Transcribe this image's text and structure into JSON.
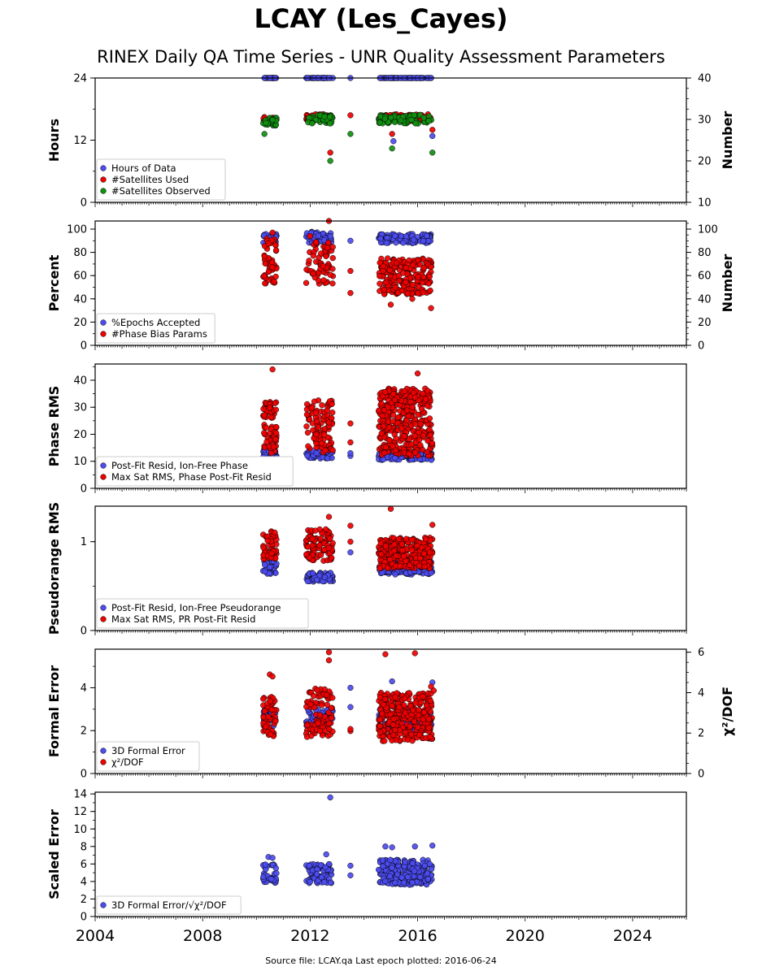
{
  "title": "LCAY (Les_Cayes)",
  "subtitle": "RINEX Daily QA Time Series - UNR Quality Assessment Parameters",
  "footer": "Source file: LCAY.qa Last epoch plotted: 2016-06-24",
  "colors": {
    "blue": "#4c4cf0",
    "red": "#f00000",
    "green": "#109010",
    "edge": "#000000"
  },
  "chart_data": [
    {
      "type": "scatter",
      "ylabel": "Hours",
      "ylabel_right": "Number",
      "xlim": [
        2004,
        2026
      ],
      "ylim": [
        0,
        24
      ],
      "ylim_right": [
        10,
        40
      ],
      "yticks": [
        0,
        12,
        24
      ],
      "yticks_right": [
        10,
        20,
        30,
        40
      ],
      "legend_location": "lower-left",
      "series": [
        {
          "name": "Hours of Data",
          "color": "#4c4cf0",
          "axis": "left",
          "points": [
            [
              2010.3,
              24
            ],
            [
              2010.5,
              24
            ],
            [
              2010.7,
              24
            ],
            [
              2011.9,
              24
            ],
            [
              2012.3,
              24
            ],
            [
              2012.7,
              24
            ],
            [
              2013.5,
              24
            ],
            [
              2014.6,
              24
            ],
            [
              2015.0,
              24
            ],
            [
              2015.5,
              24
            ],
            [
              2016.0,
              24
            ],
            [
              2016.5,
              24
            ],
            [
              2015.1,
              11.8
            ],
            [
              2016.55,
              12.8
            ]
          ],
          "clusters": [
            [
              2010.25,
              2010.75,
              24,
              24,
              25
            ],
            [
              2011.85,
              2012.85,
              24,
              24,
              45
            ],
            [
              2014.55,
              2016.55,
              24,
              24,
              80
            ]
          ]
        },
        {
          "name": "#Satellites Used",
          "color": "#f00000",
          "axis": "right",
          "points": [
            [
              2012.75,
              22
            ],
            [
              2013.5,
              31
            ],
            [
              2015.05,
              26.5
            ],
            [
              2016.55,
              27.5
            ]
          ],
          "clusters": [
            [
              2010.25,
              2010.75,
              29.5,
              30.6,
              20
            ],
            [
              2011.85,
              2012.85,
              29.8,
              31.3,
              35
            ],
            [
              2014.55,
              2016.55,
              29.6,
              31.3,
              70
            ]
          ]
        },
        {
          "name": "#Satellites Observed",
          "color": "#109010",
          "axis": "right",
          "points": [
            [
              2010.3,
              26.5
            ],
            [
              2012.75,
              20
            ],
            [
              2013.5,
              26.5
            ],
            [
              2015.05,
              23
            ],
            [
              2016.55,
              22
            ]
          ],
          "clusters": [
            [
              2010.25,
              2010.75,
              28.5,
              30.4,
              30
            ],
            [
              2011.85,
              2012.85,
              29,
              31.2,
              45
            ],
            [
              2014.55,
              2016.55,
              29,
              31.2,
              90
            ]
          ]
        }
      ]
    },
    {
      "type": "scatter",
      "ylabel": "Percent",
      "ylabel_right": "Number",
      "xlim": [
        2004,
        2026
      ],
      "ylim": [
        0,
        107
      ],
      "ylim_right": [
        0,
        107
      ],
      "yticks": [
        0,
        20,
        40,
        60,
        80,
        100
      ],
      "yticks_right": [
        0,
        20,
        40,
        60,
        80,
        100
      ],
      "legend_location": "lower-left",
      "series": [
        {
          "name": "%Epochs Accepted",
          "color": "#4c4cf0",
          "axis": "left",
          "points": [
            [
              2013.5,
              90
            ]
          ],
          "clusters": [
            [
              2010.25,
              2010.75,
              88,
              96,
              30
            ],
            [
              2011.85,
              2012.85,
              88,
              98,
              50
            ],
            [
              2014.55,
              2016.55,
              88,
              96,
              110
            ]
          ]
        },
        {
          "name": "#Phase Bias Params",
          "color": "#f00000",
          "axis": "right",
          "points": [
            [
              2010.6,
              97
            ],
            [
              2012.0,
              94
            ],
            [
              2012.7,
              107
            ],
            [
              2013.5,
              64
            ],
            [
              2013.5,
              45
            ],
            [
              2015.0,
              35
            ],
            [
              2015.8,
              40
            ],
            [
              2016.5,
              32
            ]
          ],
          "clusters": [
            [
              2010.25,
              2010.75,
              52,
              92,
              50
            ],
            [
              2011.85,
              2012.85,
              53,
              92,
              70
            ],
            [
              2014.55,
              2016.55,
              44,
              75,
              200
            ]
          ]
        }
      ]
    },
    {
      "type": "scatter",
      "ylabel": "Phase RMS",
      "xlim": [
        2004,
        2026
      ],
      "ylim": [
        0,
        46
      ],
      "yticks": [
        0,
        10,
        20,
        30,
        40
      ],
      "legend_location": "lower-left",
      "series": [
        {
          "name": "Post-Fit Resid, Ion-Free Phase",
          "color": "#4c4cf0",
          "axis": "left",
          "points": [
            [
              2013.5,
              12
            ],
            [
              2013.5,
              13
            ]
          ],
          "clusters": [
            [
              2010.25,
              2010.75,
              11,
              15,
              35
            ],
            [
              2011.85,
              2012.85,
              11,
              14,
              60
            ],
            [
              2014.55,
              2016.55,
              10.5,
              13.5,
              120
            ]
          ]
        },
        {
          "name": "Max Sat RMS, Phase Post-Fit Resid",
          "color": "#f00000",
          "axis": "left",
          "points": [
            [
              2010.6,
              44
            ],
            [
              2013.5,
              24
            ],
            [
              2013.5,
              17
            ],
            [
              2016.0,
              42.5
            ],
            [
              2016.2,
              35
            ],
            [
              2016.3,
              33
            ]
          ],
          "clusters": [
            [
              2010.25,
              2010.75,
              13,
              32,
              70
            ],
            [
              2011.85,
              2012.85,
              13,
              33,
              100
            ],
            [
              2014.55,
              2016.55,
              12,
              37,
              350
            ]
          ]
        }
      ]
    },
    {
      "type": "scatter",
      "ylabel": "Pseudorange RMS",
      "xlim": [
        2004,
        2026
      ],
      "ylim": [
        0,
        1.4
      ],
      "yticks": [
        0,
        1
      ],
      "legend_location": "lower-left",
      "series": [
        {
          "name": "Post-Fit Resid, Ion-Free Pseudorange",
          "color": "#4c4cf0",
          "axis": "left",
          "points": [
            [
              2013.5,
              0.88
            ]
          ],
          "clusters": [
            [
              2010.25,
              2010.75,
              0.63,
              0.78,
              35
            ],
            [
              2011.85,
              2012.85,
              0.55,
              0.65,
              70
            ],
            [
              2014.55,
              2016.55,
              0.63,
              0.78,
              150
            ]
          ]
        },
        {
          "name": "Max Sat RMS, PR Post-Fit Resid",
          "color": "#f00000",
          "axis": "left",
          "points": [
            [
              2012.7,
              1.28
            ],
            [
              2013.5,
              1.18
            ],
            [
              2013.5,
              1.0
            ],
            [
              2015.0,
              1.37
            ],
            [
              2016.55,
              1.19
            ]
          ],
          "clusters": [
            [
              2010.25,
              2010.75,
              0.8,
              1.12,
              50
            ],
            [
              2011.85,
              2012.85,
              0.78,
              1.14,
              90
            ],
            [
              2014.55,
              2016.55,
              0.7,
              1.05,
              260
            ]
          ]
        }
      ]
    },
    {
      "type": "scatter",
      "ylabel": "Formal Error",
      "ylabel_right": "χ²/DOF",
      "xlim": [
        2004,
        2026
      ],
      "ylim": [
        0,
        5.8
      ],
      "ylim_right": [
        0,
        6.15
      ],
      "yticks": [
        0,
        2,
        4
      ],
      "yticks_right": [
        0,
        2,
        4,
        6
      ],
      "legend_location": "lower-left",
      "series": [
        {
          "name": "3D Formal Error",
          "color": "#4c4cf0",
          "axis": "left",
          "points": [
            [
              2013.5,
              4.0
            ],
            [
              2013.5,
              3.1
            ],
            [
              2015.05,
              4.3
            ],
            [
              2016.55,
              4.25
            ]
          ],
          "clusters": [
            [
              2010.25,
              2010.75,
              2.2,
              3.0,
              30
            ],
            [
              2011.85,
              2012.85,
              2.2,
              3.0,
              50
            ],
            [
              2014.55,
              2016.55,
              2.0,
              3.0,
              120
            ]
          ]
        },
        {
          "name": "χ²/DOF",
          "color": "#f00000",
          "axis": "right",
          "points": [
            [
              2010.5,
              4.9
            ],
            [
              2010.6,
              4.8
            ],
            [
              2012.7,
              6.0
            ],
            [
              2012.7,
              5.6
            ],
            [
              2013.5,
              2.1
            ],
            [
              2013.5,
              2.2
            ],
            [
              2014.8,
              5.9
            ],
            [
              2015.9,
              5.95
            ],
            [
              2016.5,
              4.3
            ],
            [
              2016.6,
              4.1
            ]
          ],
          "clusters": [
            [
              2010.25,
              2010.75,
              1.8,
              3.8,
              50
            ],
            [
              2011.85,
              2012.85,
              1.8,
              4.2,
              90
            ],
            [
              2014.55,
              2016.55,
              1.6,
              4.0,
              300
            ]
          ]
        }
      ]
    },
    {
      "type": "scatter",
      "ylabel": "Scaled Error",
      "xlim": [
        2004,
        2026
      ],
      "ylim": [
        0,
        14.2
      ],
      "yticks": [
        0,
        2,
        4,
        6,
        8,
        10,
        12,
        14
      ],
      "xticks": [
        2004,
        2008,
        2012,
        2016,
        2020,
        2024
      ],
      "legend_location": "lower-left",
      "series": [
        {
          "name": "3D Formal Error/√χ²/DOF",
          "color": "#4c4cf0",
          "axis": "left",
          "points": [
            [
              2012.75,
              13.6
            ],
            [
              2012.6,
              7.1
            ],
            [
              2013.5,
              5.8
            ],
            [
              2013.5,
              4.7
            ],
            [
              2014.8,
              8.0
            ],
            [
              2015.05,
              7.9
            ],
            [
              2015.9,
              8.0
            ],
            [
              2016.55,
              8.1
            ],
            [
              2010.45,
              6.8
            ],
            [
              2010.6,
              6.7
            ]
          ],
          "clusters": [
            [
              2010.25,
              2010.75,
              3.8,
              6.0,
              40
            ],
            [
              2011.85,
              2012.85,
              3.8,
              6.0,
              70
            ],
            [
              2014.55,
              2016.55,
              3.6,
              6.5,
              220
            ]
          ]
        }
      ]
    }
  ]
}
